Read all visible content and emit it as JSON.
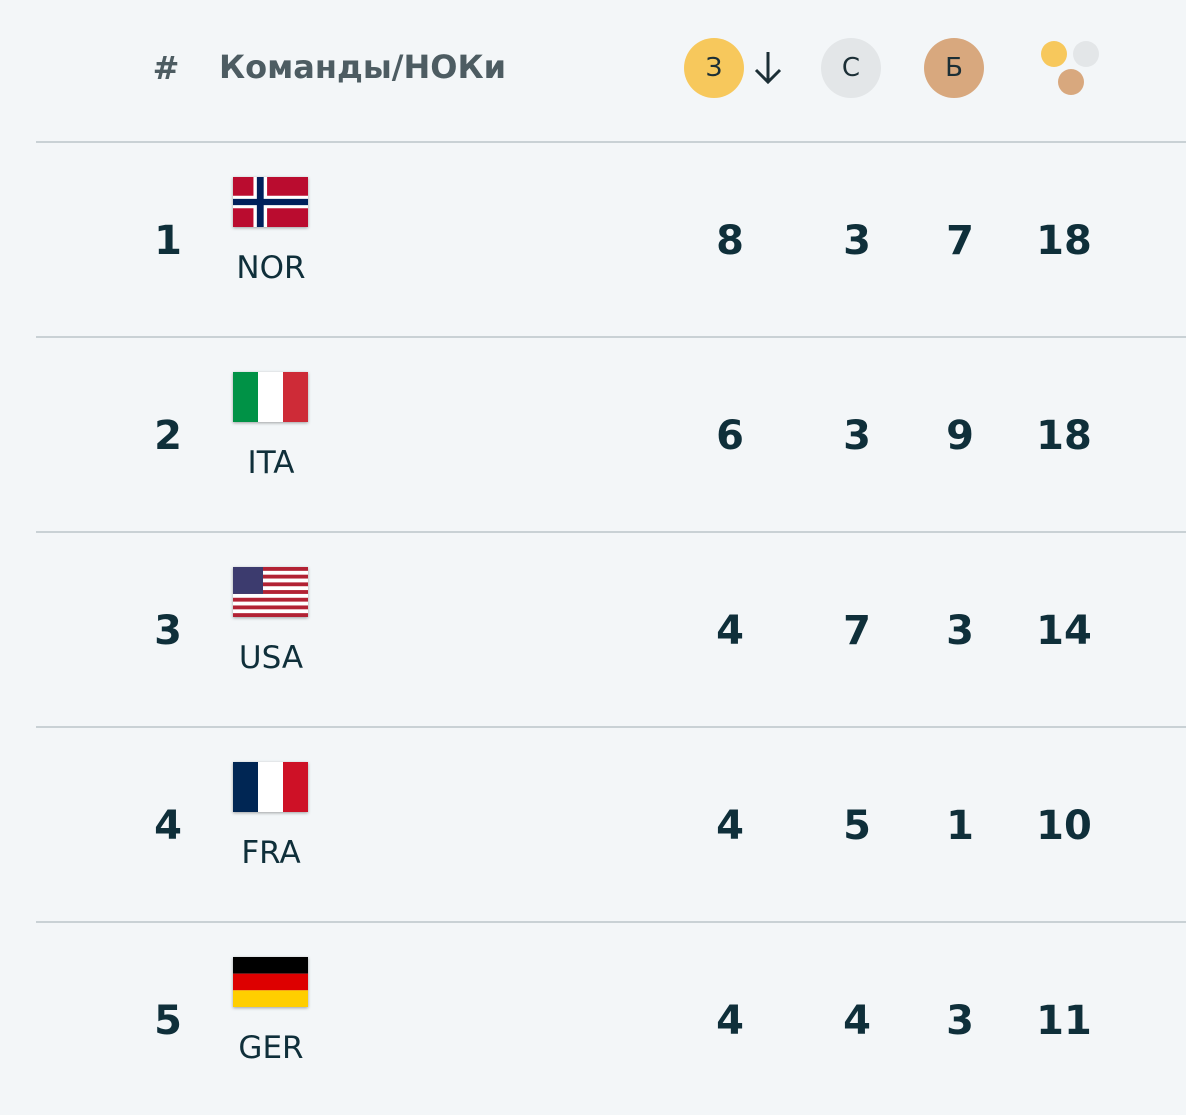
{
  "header": {
    "rank": "#",
    "team": "Команды/НОКи",
    "gold": "З",
    "silver": "С",
    "bronze": "Б"
  },
  "rows": [
    {
      "rank": 1,
      "code": "NOR",
      "gold": 8,
      "silver": 3,
      "bronze": 7,
      "total": 18
    },
    {
      "rank": 2,
      "code": "ITA",
      "gold": 6,
      "silver": 3,
      "bronze": 9,
      "total": 18
    },
    {
      "rank": 3,
      "code": "USA",
      "gold": 4,
      "silver": 7,
      "bronze": 3,
      "total": 14
    },
    {
      "rank": 4,
      "code": "FRA",
      "gold": 4,
      "silver": 5,
      "bronze": 1,
      "total": 10
    },
    {
      "rank": 5,
      "code": "GER",
      "gold": 4,
      "silver": 4,
      "bronze": 3,
      "total": 11
    }
  ]
}
